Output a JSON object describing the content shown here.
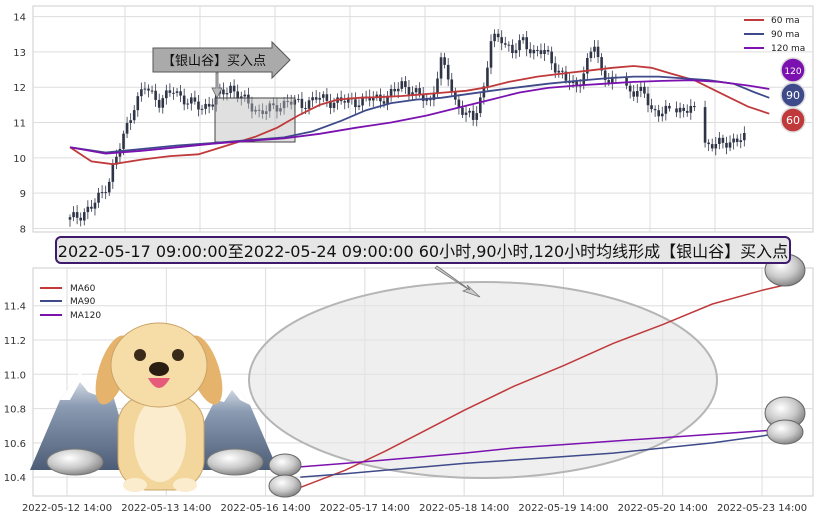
{
  "colors": {
    "ma60": "#c0393b",
    "ma90": "#3e4a8a",
    "ma120": "#7b12b0",
    "candle": "#2f3447",
    "grid": "#dddddd",
    "banner_border": "#3d1a6b"
  },
  "annotation": {
    "pattern_label": "【银山谷】买入点",
    "banner": "2022-05-17 09:00:00至2022-05-24 09:00:00 60小时,90小时,120小时均线形成【银山谷】买入点"
  },
  "badges": {
    "b120": "120",
    "b90": "90",
    "b60": "60"
  },
  "chart_data": [
    {
      "type": "line",
      "title": "",
      "ylim": [
        7.9,
        14.3
      ],
      "yticks": [
        8,
        9,
        10,
        11,
        12,
        13,
        14
      ],
      "ytick_labels": [
        "8",
        "9",
        "10",
        "11",
        "12",
        "13",
        "14"
      ],
      "grid": true,
      "legend": "top-right",
      "legend_entries": [
        "60 ma",
        "90 ma",
        "120 ma"
      ],
      "candles": {
        "n": 200,
        "close_anchors": [
          [
            0,
            8.25
          ],
          [
            3,
            8.4
          ],
          [
            6,
            8.6
          ],
          [
            9,
            9.0
          ],
          [
            11,
            9.4
          ],
          [
            13,
            10.0
          ],
          [
            15,
            10.6
          ],
          [
            18,
            11.5
          ],
          [
            21,
            12.0
          ],
          [
            25,
            11.6
          ],
          [
            29,
            11.9
          ],
          [
            33,
            11.6
          ],
          [
            37,
            11.4
          ],
          [
            41,
            11.7
          ],
          [
            45,
            12.0
          ],
          [
            49,
            11.6
          ],
          [
            53,
            11.3
          ],
          [
            57,
            11.4
          ],
          [
            61,
            11.6
          ],
          [
            65,
            11.5
          ],
          [
            69,
            11.7
          ],
          [
            73,
            11.6
          ],
          [
            77,
            11.6
          ],
          [
            81,
            11.6
          ],
          [
            85,
            11.7
          ],
          [
            89,
            11.7
          ],
          [
            93,
            12.1
          ],
          [
            97,
            11.8
          ],
          [
            101,
            11.6
          ],
          [
            104,
            12.7
          ],
          [
            106,
            12.3
          ],
          [
            108,
            11.6
          ],
          [
            111,
            11.2
          ],
          [
            113,
            11.1
          ],
          [
            116,
            12.0
          ],
          [
            118,
            13.3
          ],
          [
            121,
            13.4
          ],
          [
            124,
            13.0
          ],
          [
            127,
            13.3
          ],
          [
            130,
            13.0
          ],
          [
            133,
            13.0
          ],
          [
            136,
            12.6
          ],
          [
            139,
            12.2
          ],
          [
            142,
            12.0
          ],
          [
            145,
            12.7
          ],
          [
            147,
            13.2
          ],
          [
            149,
            12.4
          ],
          [
            152,
            12.2
          ],
          [
            155,
            12.0
          ],
          [
            158,
            11.9
          ],
          [
            161,
            11.8
          ],
          [
            163,
            11.35
          ],
          [
            166,
            11.3
          ],
          [
            169,
            11.3
          ],
          [
            172,
            11.4
          ],
          [
            174,
            11.35
          ],
          [
            176,
            11.2
          ],
          [
            178,
            10.4
          ],
          [
            181,
            10.35
          ],
          [
            184,
            10.45
          ],
          [
            187,
            10.5
          ],
          [
            189,
            10.55
          ]
        ],
        "gaps": [
          [
            153,
            156
          ],
          [
            168,
            170
          ],
          [
            175,
            178
          ]
        ]
      },
      "series": [
        {
          "name": "60 ma",
          "points": [
            [
              0,
              10.3
            ],
            [
              6,
              9.9
            ],
            [
              12,
              9.82
            ],
            [
              20,
              9.95
            ],
            [
              28,
              10.05
            ],
            [
              36,
              10.1
            ],
            [
              44,
              10.35
            ],
            [
              52,
              10.6
            ],
            [
              58,
              10.85
            ],
            [
              64,
              11.2
            ],
            [
              70,
              11.5
            ],
            [
              75,
              11.65
            ],
            [
              81,
              11.7
            ],
            [
              87,
              11.72
            ],
            [
              93,
              11.75
            ],
            [
              99,
              11.8
            ],
            [
              105,
              11.85
            ],
            [
              111,
              11.9
            ],
            [
              117,
              12.0
            ],
            [
              123,
              12.15
            ],
            [
              131,
              12.3
            ],
            [
              139,
              12.4
            ],
            [
              146,
              12.48
            ],
            [
              152,
              12.55
            ],
            [
              158,
              12.6
            ],
            [
              163,
              12.55
            ],
            [
              168,
              12.4
            ],
            [
              175,
              12.2
            ],
            [
              183,
              11.8
            ],
            [
              190,
              11.45
            ],
            [
              196,
              11.25
            ]
          ]
        },
        {
          "name": "90 ma",
          "points": [
            [
              0,
              10.3
            ],
            [
              10,
              10.15
            ],
            [
              20,
              10.25
            ],
            [
              30,
              10.35
            ],
            [
              40,
              10.42
            ],
            [
              50,
              10.5
            ],
            [
              60,
              10.58
            ],
            [
              68,
              10.75
            ],
            [
              76,
              11.05
            ],
            [
              83,
              11.35
            ],
            [
              90,
              11.55
            ],
            [
              97,
              11.65
            ],
            [
              104,
              11.7
            ],
            [
              111,
              11.8
            ],
            [
              118,
              11.9
            ],
            [
              126,
              12.0
            ],
            [
              134,
              12.1
            ],
            [
              142,
              12.18
            ],
            [
              150,
              12.25
            ],
            [
              158,
              12.3
            ],
            [
              165,
              12.3
            ],
            [
              172,
              12.25
            ],
            [
              179,
              12.2
            ],
            [
              186,
              12.1
            ],
            [
              192,
              11.85
            ],
            [
              196,
              11.7
            ]
          ]
        },
        {
          "name": "120 ma",
          "points": [
            [
              0,
              10.3
            ],
            [
              10,
              10.12
            ],
            [
              20,
              10.2
            ],
            [
              30,
              10.3
            ],
            [
              40,
              10.4
            ],
            [
              50,
              10.48
            ],
            [
              60,
              10.55
            ],
            [
              70,
              10.68
            ],
            [
              80,
              10.85
            ],
            [
              90,
              11.0
            ],
            [
              100,
              11.2
            ],
            [
              110,
              11.45
            ],
            [
              118,
              11.65
            ],
            [
              126,
              11.85
            ],
            [
              134,
              11.98
            ],
            [
              142,
              12.05
            ],
            [
              150,
              12.1
            ],
            [
              158,
              12.15
            ],
            [
              166,
              12.18
            ],
            [
              174,
              12.2
            ],
            [
              182,
              12.15
            ],
            [
              190,
              12.05
            ],
            [
              196,
              11.95
            ]
          ]
        }
      ]
    },
    {
      "type": "line",
      "title": "",
      "ylim": [
        10.29,
        11.62
      ],
      "yticks": [
        10.4,
        10.6,
        10.8,
        11.0,
        11.2,
        11.4
      ],
      "ytick_labels": [
        "10.4",
        "10.6",
        "10.8",
        "11.0",
        "11.2",
        "11.4"
      ],
      "grid": true,
      "legend": "top-left",
      "legend_entries": [
        "MA60",
        "MA90",
        "MA120"
      ],
      "x": [
        "2022-05-12 14:00",
        "2022-05-13 14:00",
        "2022-05-16 14:00",
        "2022-05-17 14:00",
        "2022-05-18 14:00",
        "2022-05-19 14:00",
        "2022-05-20 14:00",
        "2022-05-23 14:00"
      ],
      "x_label_at": [
        0,
        1,
        2,
        3,
        4,
        5,
        6,
        7
      ],
      "series": [
        {
          "name": "MA60",
          "points": [
            [
              2.35,
              10.34
            ],
            [
              2.8,
              10.44
            ],
            [
              3.2,
              10.55
            ],
            [
              3.6,
              10.67
            ],
            [
              4.0,
              10.79
            ],
            [
              4.5,
              10.93
            ],
            [
              5.0,
              11.05
            ],
            [
              5.5,
              11.18
            ],
            [
              6.0,
              11.29
            ],
            [
              6.5,
              11.41
            ],
            [
              7.0,
              11.49
            ],
            [
              7.3,
              11.53
            ]
          ]
        },
        {
          "name": "MA90",
          "points": [
            [
              2.35,
              10.4
            ],
            [
              2.8,
              10.42
            ],
            [
              3.2,
              10.44
            ],
            [
              3.6,
              10.46
            ],
            [
              4.0,
              10.48
            ],
            [
              4.5,
              10.5
            ],
            [
              5.0,
              10.52
            ],
            [
              5.5,
              10.54
            ],
            [
              6.0,
              10.57
            ],
            [
              6.5,
              10.6
            ],
            [
              7.0,
              10.64
            ],
            [
              7.3,
              10.67
            ]
          ]
        },
        {
          "name": "MA120",
          "points": [
            [
              2.35,
              10.46
            ],
            [
              2.8,
              10.48
            ],
            [
              3.2,
              10.5
            ],
            [
              3.6,
              10.52
            ],
            [
              4.0,
              10.54
            ],
            [
              4.5,
              10.57
            ],
            [
              5.0,
              10.59
            ],
            [
              5.5,
              10.61
            ],
            [
              6.0,
              10.63
            ],
            [
              6.5,
              10.65
            ],
            [
              7.0,
              10.67
            ],
            [
              7.3,
              10.68
            ]
          ]
        }
      ]
    }
  ]
}
